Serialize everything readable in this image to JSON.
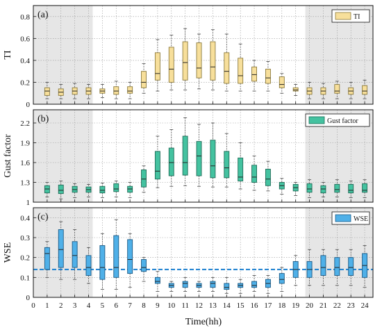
{
  "figure": {
    "xlabel": "Time(hh)",
    "x_ticks": [
      0,
      1,
      2,
      3,
      4,
      5,
      6,
      7,
      8,
      9,
      10,
      11,
      12,
      13,
      14,
      15,
      16,
      17,
      18,
      19,
      20,
      21,
      22,
      23,
      24
    ],
    "shaded_regions": [
      [
        0,
        4.3
      ],
      [
        19.7,
        24.6
      ]
    ],
    "xlim": [
      0,
      24.6
    ]
  },
  "chart_data": [
    {
      "type": "box",
      "panel_label": "(a)",
      "ylabel": "TI",
      "legend": "TI",
      "color": "#f7df9b",
      "edge_color": "#8c7a3c",
      "ylim": [
        0,
        0.9
      ],
      "y_ticks": [
        "0",
        "0.2",
        "0.4",
        "0.6",
        "0.8"
      ],
      "y_tick_values": [
        0,
        0.2,
        0.4,
        0.6,
        0.8
      ],
      "grid": true,
      "categories": [
        1,
        2,
        3,
        4,
        5,
        6,
        7,
        8,
        9,
        10,
        11,
        12,
        13,
        14,
        15,
        16,
        17,
        18,
        19,
        20,
        21,
        22,
        23,
        24
      ],
      "q1": [
        0.08,
        0.08,
        0.09,
        0.09,
        0.1,
        0.09,
        0.1,
        0.15,
        0.22,
        0.2,
        0.22,
        0.24,
        0.22,
        0.19,
        0.19,
        0.21,
        0.19,
        0.15,
        0.12,
        0.09,
        0.09,
        0.1,
        0.09,
        0.09
      ],
      "median": [
        0.12,
        0.11,
        0.12,
        0.12,
        0.12,
        0.12,
        0.12,
        0.2,
        0.28,
        0.32,
        0.38,
        0.33,
        0.34,
        0.3,
        0.26,
        0.27,
        0.24,
        0.18,
        0.13,
        0.12,
        0.12,
        0.12,
        0.12,
        0.12
      ],
      "q3": [
        0.15,
        0.14,
        0.15,
        0.15,
        0.14,
        0.16,
        0.16,
        0.3,
        0.47,
        0.52,
        0.57,
        0.56,
        0.57,
        0.47,
        0.42,
        0.34,
        0.32,
        0.25,
        0.15,
        0.15,
        0.15,
        0.18,
        0.15,
        0.17
      ],
      "whisker_low": [
        0.05,
        0.05,
        0.05,
        0.05,
        0.06,
        0.05,
        0.05,
        0.1,
        0.12,
        0.13,
        0.13,
        0.14,
        0.13,
        0.12,
        0.12,
        0.12,
        0.12,
        0.1,
        0.08,
        0.05,
        0.05,
        0.05,
        0.05,
        0.05
      ],
      "whisker_high": [
        0.2,
        0.18,
        0.19,
        0.18,
        0.18,
        0.21,
        0.2,
        0.37,
        0.59,
        0.63,
        0.69,
        0.64,
        0.68,
        0.64,
        0.55,
        0.4,
        0.39,
        0.28,
        0.18,
        0.2,
        0.19,
        0.21,
        0.2,
        0.22
      ]
    },
    {
      "type": "box",
      "panel_label": "(b)",
      "ylabel": "Gust factor",
      "legend": "Gust factor",
      "color": "#44c2a0",
      "edge_color": "#1f6b57",
      "ylim": [
        1.0,
        2.4
      ],
      "y_ticks": [
        "1",
        "1.3",
        "1.6",
        "1.9",
        "2.2"
      ],
      "y_tick_values": [
        1.0,
        1.3,
        1.6,
        1.9,
        2.2
      ],
      "grid": true,
      "categories": [
        1,
        2,
        3,
        4,
        5,
        6,
        7,
        8,
        9,
        10,
        11,
        12,
        13,
        14,
        15,
        16,
        17,
        18,
        19,
        20,
        21,
        22,
        23,
        24
      ],
      "q1": [
        1.14,
        1.13,
        1.15,
        1.15,
        1.14,
        1.16,
        1.15,
        1.23,
        1.35,
        1.4,
        1.41,
        1.4,
        1.37,
        1.37,
        1.32,
        1.3,
        1.25,
        1.2,
        1.17,
        1.15,
        1.14,
        1.15,
        1.14,
        1.15
      ],
      "median": [
        1.2,
        1.18,
        1.19,
        1.19,
        1.18,
        1.2,
        1.2,
        1.35,
        1.47,
        1.6,
        1.6,
        1.7,
        1.55,
        1.52,
        1.38,
        1.38,
        1.35,
        1.25,
        1.22,
        1.2,
        1.2,
        1.19,
        1.18,
        1.18
      ],
      "q3": [
        1.25,
        1.26,
        1.24,
        1.23,
        1.24,
        1.28,
        1.24,
        1.49,
        1.77,
        1.82,
        2.0,
        1.92,
        1.94,
        1.77,
        1.67,
        1.56,
        1.5,
        1.3,
        1.27,
        1.28,
        1.25,
        1.27,
        1.27,
        1.28
      ],
      "whisker_low": [
        1.08,
        1.05,
        1.07,
        1.08,
        1.07,
        1.08,
        1.07,
        1.15,
        1.22,
        1.24,
        1.25,
        1.24,
        1.23,
        1.23,
        1.2,
        1.18,
        1.17,
        1.12,
        1.1,
        1.07,
        1.08,
        1.08,
        1.07,
        1.07
      ],
      "whisker_high": [
        1.3,
        1.32,
        1.28,
        1.27,
        1.29,
        1.32,
        1.3,
        1.55,
        2.0,
        2.1,
        2.28,
        2.18,
        2.2,
        2.04,
        1.9,
        1.7,
        1.62,
        1.36,
        1.3,
        1.34,
        1.3,
        1.34,
        1.32,
        1.34
      ]
    },
    {
      "type": "box",
      "panel_label": "(c)",
      "ylabel": "WSE",
      "legend": "WSE",
      "color": "#4fb0e8",
      "edge_color": "#1a5a86",
      "ylim": [
        0,
        0.45
      ],
      "y_ticks": [
        "0",
        "0.1",
        "0.2",
        "0.3",
        "0.4"
      ],
      "y_tick_values": [
        0,
        0.1,
        0.2,
        0.3,
        0.4
      ],
      "grid": true,
      "reference_line": 0.14,
      "reference_color": "#1a7fcf",
      "categories": [
        1,
        2,
        3,
        4,
        5,
        6,
        7,
        8,
        9,
        10,
        11,
        12,
        13,
        14,
        15,
        16,
        17,
        18,
        19,
        20,
        21,
        22,
        23,
        24
      ],
      "q1": [
        0.14,
        0.15,
        0.15,
        0.11,
        0.09,
        0.1,
        0.12,
        0.13,
        0.07,
        0.05,
        0.05,
        0.05,
        0.05,
        0.04,
        0.05,
        0.05,
        0.05,
        0.07,
        0.1,
        0.1,
        0.11,
        0.11,
        0.11,
        0.1
      ],
      "median": [
        0.22,
        0.24,
        0.21,
        0.15,
        0.15,
        0.15,
        0.19,
        0.15,
        0.08,
        0.06,
        0.07,
        0.06,
        0.07,
        0.05,
        0.06,
        0.06,
        0.07,
        0.09,
        0.14,
        0.14,
        0.15,
        0.15,
        0.15,
        0.16
      ],
      "q3": [
        0.25,
        0.34,
        0.28,
        0.21,
        0.26,
        0.31,
        0.29,
        0.19,
        0.1,
        0.07,
        0.08,
        0.07,
        0.08,
        0.07,
        0.07,
        0.08,
        0.09,
        0.12,
        0.18,
        0.18,
        0.21,
        0.2,
        0.2,
        0.22
      ],
      "whisker_low": [
        0.1,
        0.09,
        0.09,
        0.07,
        0.04,
        0.04,
        0.05,
        0.08,
        0.03,
        0.03,
        0.03,
        0.03,
        0.03,
        0.02,
        0.02,
        0.03,
        0.02,
        0.03,
        0.06,
        0.06,
        0.06,
        0.06,
        0.06,
        0.05
      ],
      "whisker_high": [
        0.28,
        0.38,
        0.34,
        0.25,
        0.32,
        0.39,
        0.32,
        0.2,
        0.13,
        0.08,
        0.1,
        0.08,
        0.1,
        0.1,
        0.09,
        0.11,
        0.11,
        0.15,
        0.21,
        0.24,
        0.24,
        0.24,
        0.24,
        0.26
      ]
    }
  ]
}
